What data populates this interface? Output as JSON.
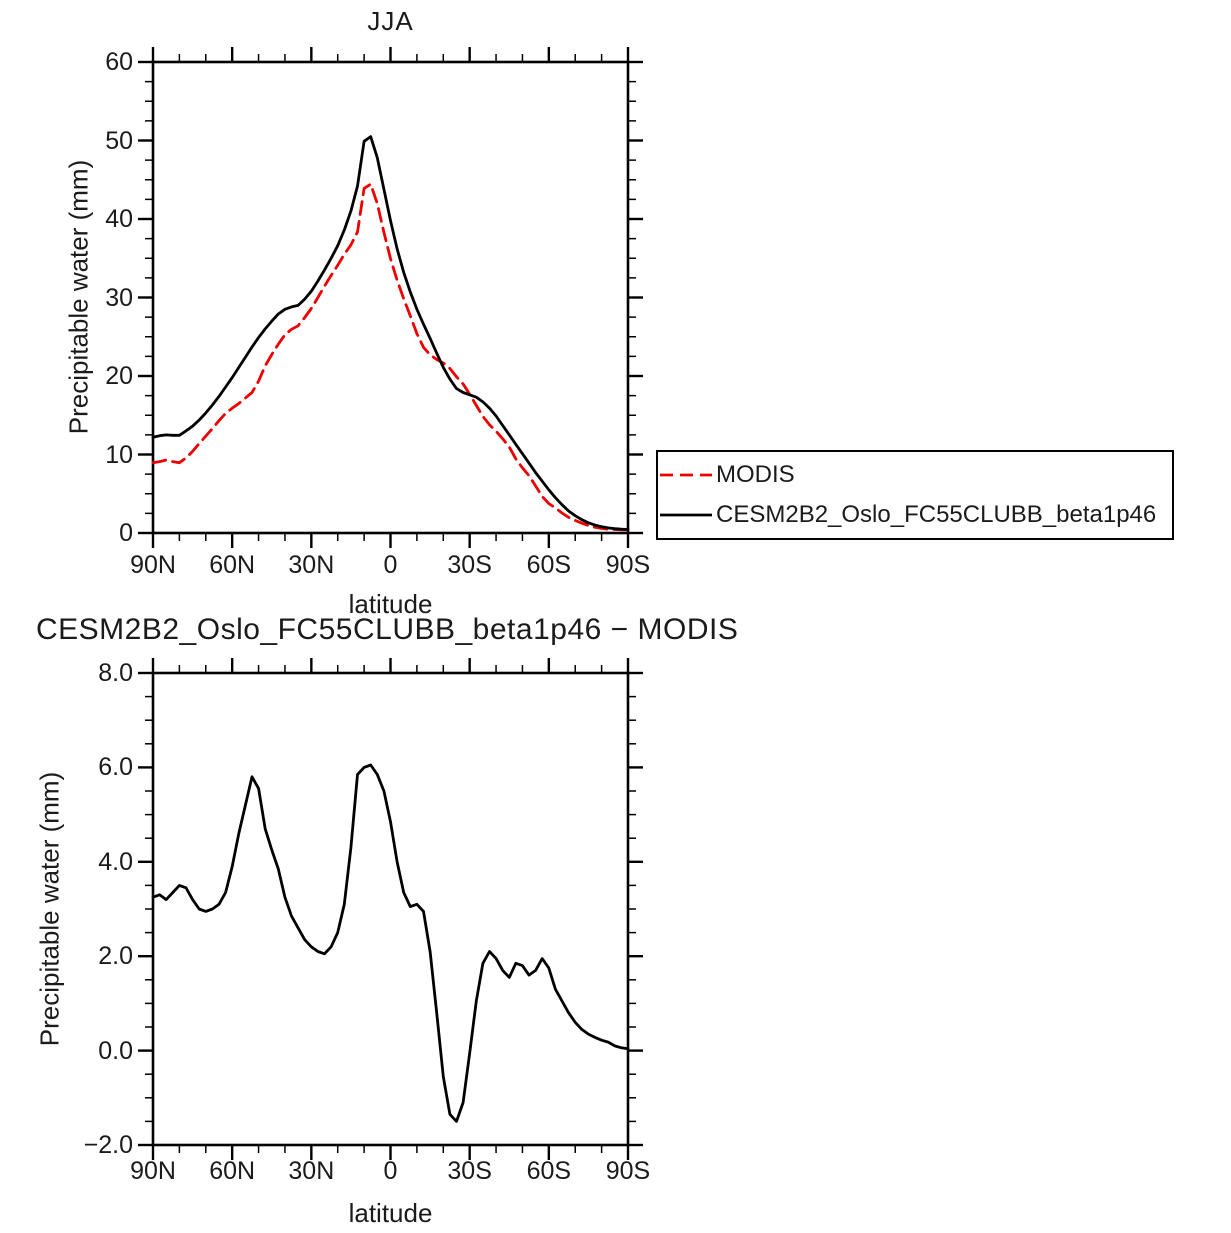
{
  "page": {
    "background": "#ffffff",
    "text_color": "#1b1b1b"
  },
  "colors": {
    "modis_red": "#ee0000",
    "cesm_black": "#000000",
    "axis": "#000000"
  },
  "chart1": {
    "title": "JJA",
    "ylabel": "Precipitable water (mm)",
    "xlabel": "latitude",
    "ytick_labels": [
      "0",
      "10",
      "20",
      "30",
      "40",
      "50",
      "60"
    ],
    "xtick_labels": [
      "90N",
      "60N",
      "30N",
      "0",
      "30S",
      "60S",
      "90S"
    ],
    "legend": {
      "entries": [
        {
          "label": "MODIS",
          "style": "dashed",
          "color": "#ee0000"
        },
        {
          "label": "CESM2B2_Oslo_FC55CLUBB_beta1p46",
          "style": "solid",
          "color": "#000000"
        }
      ]
    }
  },
  "chart2": {
    "title": "CESM2B2_Oslo_FC55CLUBB_beta1p46 − MODIS",
    "ylabel": "Precipitable water (mm)",
    "xlabel": "latitude",
    "ytick_labels": [
      "8.0",
      "6.0",
      "4.0",
      "2.0",
      "0.0",
      "−2.0"
    ],
    "xtick_labels": [
      "90N",
      "60N",
      "30N",
      "0",
      "30S",
      "60S",
      "90S"
    ]
  },
  "chart_data": [
    {
      "type": "line",
      "title": "JJA",
      "xlabel": "latitude",
      "ylabel": "Precipitable water (mm)",
      "x_unit": "degrees latitude (positive = North)",
      "xlim": [
        90,
        -90
      ],
      "ylim": [
        0,
        60
      ],
      "x_major_tick_deg": 30,
      "x_minor_tick_deg": 10,
      "y_major_tick": 10,
      "y_minor_tick": 2.5,
      "grid": false,
      "legend_position": "outside-right",
      "x": [
        90,
        87.5,
        85,
        82.5,
        80,
        77.5,
        75,
        72.5,
        70,
        67.5,
        65,
        62.5,
        60,
        57.5,
        55,
        52.5,
        50,
        47.5,
        45,
        42.5,
        40,
        37.5,
        35,
        32.5,
        30,
        27.5,
        25,
        22.5,
        20,
        17.5,
        15,
        12.5,
        10,
        7.5,
        5,
        2.5,
        0,
        -2.5,
        -5,
        -7.5,
        -10,
        -12.5,
        -15,
        -17.5,
        -20,
        -22.5,
        -25,
        -27.5,
        -30,
        -32.5,
        -35,
        -37.5,
        -40,
        -42.5,
        -45,
        -47.5,
        -50,
        -52.5,
        -55,
        -57.5,
        -60,
        -62.5,
        -65,
        -67.5,
        -70,
        -72.5,
        -75,
        -77.5,
        -80,
        -82.5,
        -85,
        -87.5,
        -90
      ],
      "series": [
        {
          "name": "MODIS",
          "color": "#ee0000",
          "dash": "13 7",
          "values": [
            8.95,
            9.1,
            9.3,
            9.1,
            8.95,
            9.55,
            10.4,
            11.4,
            12.35,
            13.3,
            14.3,
            15.25,
            15.9,
            16.5,
            17.2,
            17.9,
            19.35,
            21.3,
            22.75,
            24.05,
            25.25,
            25.95,
            26.4,
            27.45,
            28.6,
            30.0,
            31.45,
            32.8,
            34.1,
            35.5,
            36.7,
            38.35,
            43.9,
            44.45,
            41.95,
            38.3,
            34.95,
            32.2,
            29.85,
            27.65,
            25.4,
            23.65,
            22.7,
            22.1,
            21.65,
            20.95,
            19.9,
            19.0,
            17.65,
            16.25,
            14.85,
            13.8,
            12.95,
            12.0,
            10.95,
            9.45,
            8.3,
            7.3,
            6.0,
            4.65,
            3.75,
            3.2,
            2.55,
            2.0,
            1.6,
            1.25,
            0.95,
            0.72,
            0.58,
            0.47,
            0.45,
            0.42,
            0.41
          ]
        },
        {
          "name": "CESM2B2_Oslo_FC55CLUBB_beta1p46",
          "color": "#000000",
          "dash": "",
          "values": [
            12.2,
            12.4,
            12.5,
            12.45,
            12.45,
            13.0,
            13.6,
            14.4,
            15.3,
            16.3,
            17.4,
            18.6,
            19.8,
            21.1,
            22.4,
            23.7,
            24.9,
            26.0,
            27.0,
            27.9,
            28.5,
            28.8,
            29.0,
            29.8,
            30.8,
            32.1,
            33.5,
            35.0,
            36.6,
            38.6,
            41.0,
            44.2,
            49.9,
            50.5,
            47.8,
            43.8,
            39.8,
            36.2,
            33.2,
            30.7,
            28.5,
            26.6,
            24.8,
            22.9,
            21.1,
            19.6,
            18.4,
            17.9,
            17.6,
            17.3,
            16.7,
            15.9,
            14.9,
            13.7,
            12.5,
            11.3,
            10.1,
            8.9,
            7.7,
            6.6,
            5.5,
            4.5,
            3.6,
            2.8,
            2.2,
            1.7,
            1.3,
            1.0,
            0.8,
            0.65,
            0.55,
            0.48,
            0.45
          ]
        }
      ]
    },
    {
      "type": "line",
      "title": "CESM2B2_Oslo_FC55CLUBB_beta1p46 − MODIS",
      "xlabel": "latitude",
      "ylabel": "Precipitable water (mm)",
      "x_unit": "degrees latitude (positive = North)",
      "xlim": [
        90,
        -90
      ],
      "ylim": [
        -2,
        8
      ],
      "x_major_tick_deg": 30,
      "x_minor_tick_deg": 10,
      "y_major_tick": 2,
      "y_minor_tick": 0.5,
      "grid": false,
      "x": [
        90,
        87.5,
        85,
        82.5,
        80,
        77.5,
        75,
        72.5,
        70,
        67.5,
        65,
        62.5,
        60,
        57.5,
        55,
        52.5,
        50,
        47.5,
        45,
        42.5,
        40,
        37.5,
        35,
        32.5,
        30,
        27.5,
        25,
        22.5,
        20,
        17.5,
        15,
        12.5,
        10,
        7.5,
        5,
        2.5,
        0,
        -2.5,
        -5,
        -7.5,
        -10,
        -12.5,
        -15,
        -17.5,
        -20,
        -22.5,
        -25,
        -27.5,
        -30,
        -32.5,
        -35,
        -37.5,
        -40,
        -42.5,
        -45,
        -47.5,
        -50,
        -52.5,
        -55,
        -57.5,
        -60,
        -62.5,
        -65,
        -67.5,
        -70,
        -72.5,
        -75,
        -77.5,
        -80,
        -82.5,
        -85,
        -87.5,
        -90
      ],
      "series": [
        {
          "name": "CESM2B2_Oslo_FC55CLUBB_beta1p46 − MODIS",
          "color": "#000000",
          "dash": "",
          "values": [
            3.25,
            3.3,
            3.2,
            3.35,
            3.5,
            3.45,
            3.2,
            3.0,
            2.95,
            3.0,
            3.1,
            3.35,
            3.9,
            4.6,
            5.2,
            5.8,
            5.55,
            4.7,
            4.25,
            3.85,
            3.25,
            2.85,
            2.6,
            2.35,
            2.2,
            2.1,
            2.05,
            2.2,
            2.5,
            3.1,
            4.3,
            5.85,
            6.0,
            6.05,
            5.85,
            5.5,
            4.85,
            4.0,
            3.35,
            3.05,
            3.1,
            2.95,
            2.1,
            0.8,
            -0.55,
            -1.35,
            -1.5,
            -1.1,
            -0.05,
            1.05,
            1.85,
            2.1,
            1.95,
            1.7,
            1.55,
            1.85,
            1.8,
            1.6,
            1.7,
            1.95,
            1.75,
            1.3,
            1.05,
            0.8,
            0.6,
            0.45,
            0.35,
            0.28,
            0.22,
            0.18,
            0.1,
            0.06,
            0.04
          ]
        }
      ]
    }
  ]
}
